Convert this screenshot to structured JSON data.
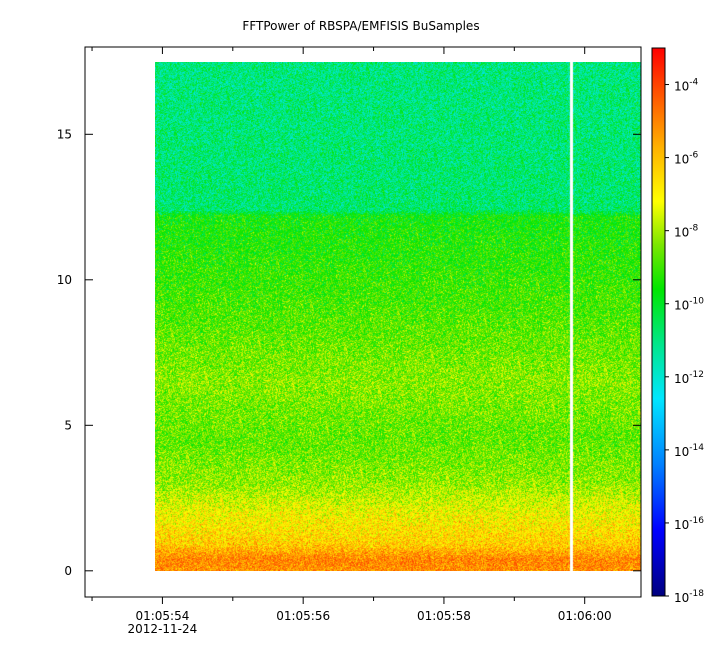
{
  "chart_data": {
    "type": "heatmap",
    "title": "FFTPower of RBSPA/EMFISIS  BuSamples",
    "xlabel": "",
    "ylabel": "",
    "x_axis": {
      "major_ticks": [
        {
          "time": "01:05:54",
          "label": "01:05:54",
          "sublabel": "2012-11-24"
        },
        {
          "time": "01:05:56",
          "label": "01:05:56"
        },
        {
          "time": "01:05:58",
          "label": "01:05:58"
        },
        {
          "time": "01:06:00",
          "label": "01:06:00"
        }
      ],
      "minor_ticks": [
        "01:05:53",
        "01:05:55",
        "01:05:57",
        "01:05:59"
      ],
      "range": [
        "01:05:52.9",
        "01:06:00.8"
      ]
    },
    "y_axis": {
      "ticks": [
        0,
        5,
        10,
        15
      ],
      "range": [
        -0.9,
        18.0
      ]
    },
    "data_extent": {
      "x_start": "01:05:53.9",
      "x_end": "01:06:00.8",
      "y_min": 0,
      "y_max": 17.5,
      "gap_at": "01:05:59.8"
    },
    "color_scale": {
      "scale": "log",
      "range": [
        "1e-18",
        "1e-3"
      ],
      "ticks": [
        {
          "base": "10",
          "exp": "-4",
          "value": -4
        },
        {
          "base": "10",
          "exp": "-6",
          "value": -6
        },
        {
          "base": "10",
          "exp": "-8",
          "value": -8
        },
        {
          "base": "10",
          "exp": "-10",
          "value": -10
        },
        {
          "base": "10",
          "exp": "-12",
          "value": -12
        },
        {
          "base": "10",
          "exp": "-14",
          "value": -14
        },
        {
          "base": "10",
          "exp": "-16",
          "value": -16
        },
        {
          "base": "10",
          "exp": "-18",
          "value": -18
        }
      ]
    },
    "spectrum_profile": [
      {
        "y": 0.0,
        "log_power": -6.5
      },
      {
        "y": 0.4,
        "log_power": -6.3
      },
      {
        "y": 0.9,
        "log_power": -7.4
      },
      {
        "y": 2.0,
        "log_power": -8.2
      },
      {
        "y": 3.0,
        "log_power": -9.1
      },
      {
        "y": 4.5,
        "log_power": -9.6
      },
      {
        "y": 6.5,
        "log_power": -9.2
      },
      {
        "y": 9.0,
        "log_power": -9.8
      },
      {
        "y": 12.2,
        "log_power": -10.4
      },
      {
        "y": 12.4,
        "log_power": -11.5
      },
      {
        "y": 17.5,
        "log_power": -11.7
      }
    ],
    "grid": false,
    "legend": "colorbar-right"
  }
}
